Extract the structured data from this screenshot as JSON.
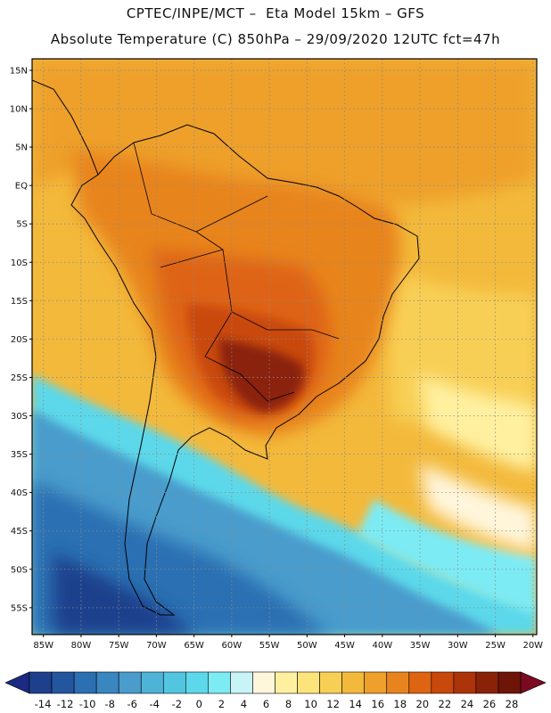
{
  "header": {
    "title_line1": "CPTEC/INPE/MCT –  Eta Model 15km – GFS",
    "title_line2": "Absolute Temperature (C) 850hPa – 29/09/2020 12UTC fct=47h"
  },
  "map": {
    "lat_labels": [
      "15N",
      "10N",
      "5N",
      "EQ",
      "5S",
      "10S",
      "15S",
      "20S",
      "25S",
      "30S",
      "35S",
      "40S",
      "45S",
      "50S",
      "55S"
    ],
    "lon_labels": [
      "85W",
      "80W",
      "75W",
      "70W",
      "65W",
      "60W",
      "55W",
      "50W",
      "45W",
      "40W",
      "35W",
      "30W",
      "25W",
      "20W"
    ],
    "lat_values": [
      15,
      10,
      5,
      0,
      -5,
      -10,
      -15,
      -20,
      -25,
      -30,
      -35,
      -40,
      -45,
      -50,
      -55
    ],
    "lon_values": [
      -85,
      -80,
      -75,
      -70,
      -65,
      -60,
      -55,
      -50,
      -45,
      -40,
      -35,
      -30,
      -25,
      -20
    ],
    "lat_range": [
      -58.5,
      16.5
    ],
    "lon_range": [
      -86.5,
      -19.5
    ]
  },
  "colorbar": {
    "labels": [
      "-14",
      "-12",
      "-10",
      "-8",
      "-6",
      "-4",
      "-2",
      "0",
      "2",
      "4",
      "6",
      "8",
      "10",
      "12",
      "14",
      "16",
      "18",
      "20",
      "22",
      "24",
      "26",
      "28"
    ],
    "colors": [
      "#1e3f8c",
      "#2456a0",
      "#2c6fb2",
      "#3a86c0",
      "#4a9ccc",
      "#4fb3d8",
      "#52c6e1",
      "#5cd8ea",
      "#7cebf4",
      "#c8f3f7",
      "#fff6dc",
      "#fff0a0",
      "#fde47a",
      "#f8cf55",
      "#f3b93b",
      "#eea02a",
      "#e8841e",
      "#de6412",
      "#c9480c",
      "#ad3309",
      "#8a2208",
      "#6e1508"
    ],
    "under_color": "#1a2a80",
    "over_color": "#7a0a20"
  }
}
